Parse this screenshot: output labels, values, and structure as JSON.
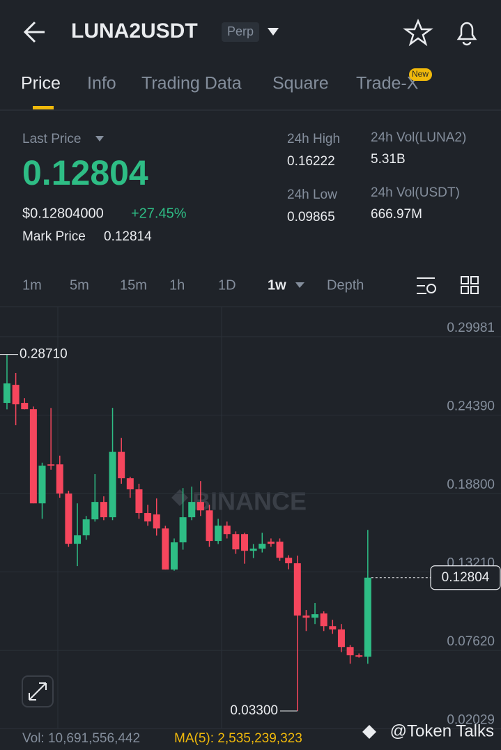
{
  "header": {
    "symbol": "LUNA2USDT",
    "badge": "Perp"
  },
  "tabs": [
    "Price",
    "Info",
    "Trading Data",
    "Square",
    "Trade-X"
  ],
  "tab_badge": "New",
  "ticker": {
    "last_price_label": "Last Price",
    "last_price": "0.12804",
    "usd_price": "$0.12804000",
    "change": "+27.45%",
    "mark_price_label": "Mark Price",
    "mark_price": "0.12814",
    "stats": [
      {
        "label": "24h High",
        "value": "0.16222"
      },
      {
        "label": "24h Vol(LUNA2)",
        "value": "5.31B"
      },
      {
        "label": "24h Low",
        "value": "0.09865"
      },
      {
        "label": "24h Vol(USDT)",
        "value": "666.97M"
      }
    ]
  },
  "intervals": [
    "1m",
    "5m",
    "15m",
    "1h",
    "1D",
    "1w",
    "Depth"
  ],
  "chart_data": {
    "type": "candlestick",
    "watermark": "BINANCE",
    "up_color": "#2ebd85",
    "down_color": "#f6465d",
    "grid": true,
    "ylim": [
      0.0181,
      0.3212
    ],
    "yticks": [
      0.29981,
      {
        "value": 0.2439,
        "label": "0.24390"
      },
      {
        "value": 0.188,
        "label": "0.18800"
      },
      {
        "value": 0.1321,
        "label": "0.13210"
      },
      {
        "value": 0.0762,
        "label": "0.07620"
      },
      0.02029
    ],
    "open": [
      0.2526,
      0.2655,
      0.2526,
      0.2481,
      0.181,
      0.2088,
      0.2088,
      0.188,
      0.1522,
      0.1582,
      0.1696,
      0.182,
      0.1711,
      0.2178,
      0.1989,
      0.191,
      0.1741,
      0.1731,
      0.1631,
      0.1338,
      0.1532,
      0.1711,
      0.182,
      0.176,
      0.1542,
      0.1651,
      0.1591,
      0.1591,
      0.1472,
      0.1487,
      0.1537,
      0.1537,
      0.1422,
      0.1383,
      0.101,
      0.0995,
      0.1025,
      0.0935,
      0.0911,
      0.0786,
      0.0727,
      0.0717
    ],
    "high": [
      0.2871,
      0.274,
      0.256,
      0.25,
      0.21,
      0.249,
      0.215,
      0.19,
      0.181,
      0.172,
      0.2019,
      0.186,
      0.2491,
      0.2277,
      0.2,
      0.195,
      0.18,
      0.1845,
      0.165,
      0.156,
      0.1919,
      0.1929,
      0.1969,
      0.18,
      0.17,
      0.168,
      0.161,
      0.16,
      0.152,
      0.16,
      0.156,
      0.156,
      0.144,
      0.1437,
      0.105,
      0.11,
      0.104,
      0.098,
      0.095,
      0.08,
      0.074,
      0.1621
    ],
    "low": [
      0.248,
      0.2367,
      0.248,
      0.181,
      0.17,
      0.205,
      0.185,
      0.15,
      0.1363,
      0.155,
      0.168,
      0.169,
      0.169,
      0.195,
      0.185,
      0.17,
      0.165,
      0.158,
      0.1338,
      0.133,
      0.148,
      0.169,
      0.172,
      0.15,
      0.152,
      0.156,
      0.145,
      0.138,
      0.142,
      0.146,
      0.15,
      0.14,
      0.134,
      0.033,
      0.09,
      0.095,
      0.09,
      0.088,
      0.075,
      0.0667,
      0.071,
      0.0667
    ],
    "close": [
      0.2665,
      0.2516,
      0.2481,
      0.181,
      0.2079,
      0.2079,
      0.188,
      0.1522,
      0.1582,
      0.1696,
      0.182,
      0.1711,
      0.2178,
      0.1989,
      0.191,
      0.1741,
      0.1681,
      0.1631,
      0.1338,
      0.1532,
      0.1711,
      0.182,
      0.176,
      0.1542,
      0.1651,
      0.1591,
      0.1482,
      0.1472,
      0.1487,
      0.1522,
      0.1522,
      0.1422,
      0.1383,
      0.101,
      0.0995,
      0.102,
      0.0935,
      0.0911,
      0.0786,
      0.0727,
      0.0717,
      0.12804
    ],
    "high_label": "0.28710",
    "low_label": "0.03300"
  },
  "footer": {
    "volume": "Vol: 10,691,556,442",
    "ma": "MA(5): 2,535,239,323",
    "watermark": "@Token Talks"
  }
}
